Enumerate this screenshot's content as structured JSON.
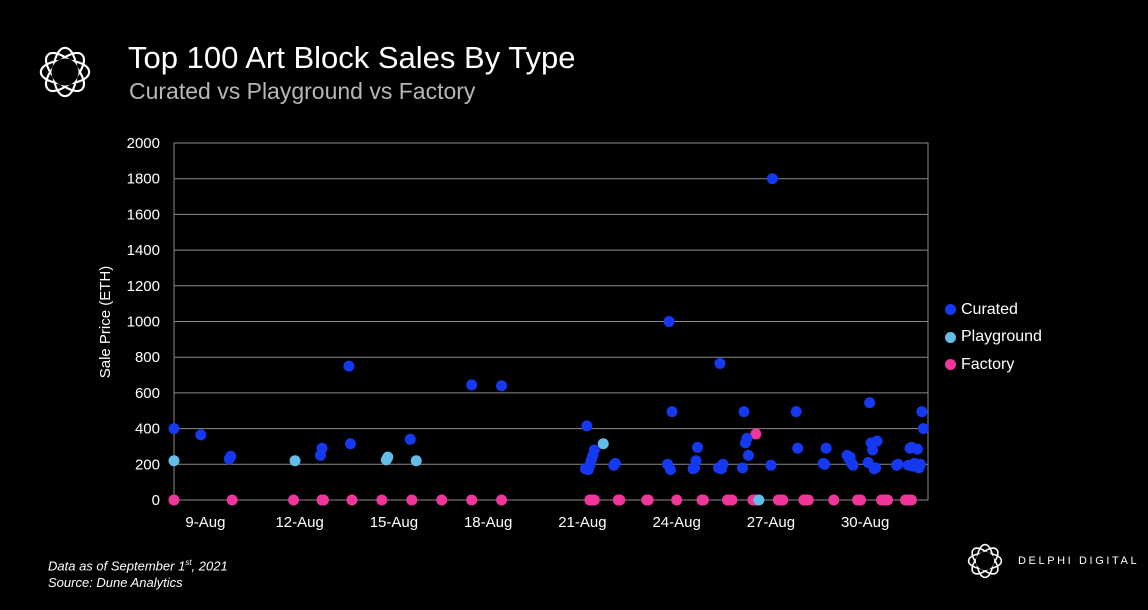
{
  "header": {
    "title": "Top 100 Art Block Sales By Type",
    "subtitle": "Curated vs Playground vs Factory"
  },
  "footnote": {
    "line1_prefix": "Data as of September 1",
    "line1_sup": "st",
    "line1_suffix": ", 2021",
    "line2": "Source:  Dune Analytics"
  },
  "brand": {
    "name": "DELPHI DIGITAL"
  },
  "colors": {
    "Curated": "#1439f0",
    "Playground": "#63bde9",
    "Factory": "#f0359b",
    "plot_bg": "#000000",
    "grid": "#8a8a8a"
  },
  "chart_data": {
    "type": "scatter",
    "title": "Top 100 Art Block Sales By Type",
    "subtitle": "Curated vs Playground vs Factory",
    "xlabel": "",
    "ylabel": "Sale Price (ETH)",
    "xlim": [
      "2021-08-08",
      "2021-09-01"
    ],
    "ylim": [
      0,
      2000
    ],
    "x_tick_labels": [
      "9-Aug",
      "12-Aug",
      "15-Aug",
      "18-Aug",
      "21-Aug",
      "24-Aug",
      "27-Aug",
      "30-Aug"
    ],
    "x_tick_dates": [
      "2021-08-09",
      "2021-08-12",
      "2021-08-15",
      "2021-08-18",
      "2021-08-21",
      "2021-08-24",
      "2021-08-27",
      "2021-08-30"
    ],
    "y_ticks": [
      0,
      200,
      400,
      600,
      800,
      1000,
      1200,
      1400,
      1600,
      1800,
      2000
    ],
    "grid": true,
    "legend_position": "right",
    "series": [
      {
        "name": "Curated",
        "x": [
          "2021-08-08",
          "2021-08-08",
          "2021-08-09",
          "2021-08-09",
          "2021-08-12",
          "2021-08-12",
          "2021-08-13",
          "2021-08-13",
          "2021-08-15",
          "2021-08-17",
          "2021-08-18",
          "2021-08-21",
          "2021-08-21",
          "2021-08-21",
          "2021-08-21",
          "2021-08-21",
          "2021-08-21",
          "2021-08-21",
          "2021-08-22",
          "2021-08-22",
          "2021-08-23",
          "2021-08-23",
          "2021-08-23",
          "2021-08-23",
          "2021-08-24",
          "2021-08-24",
          "2021-08-24",
          "2021-08-24",
          "2021-08-25",
          "2021-08-25",
          "2021-08-25",
          "2021-08-25",
          "2021-08-26",
          "2021-08-26",
          "2021-08-26",
          "2021-08-26",
          "2021-08-26",
          "2021-08-27",
          "2021-08-27",
          "2021-08-27",
          "2021-08-27",
          "2021-08-28",
          "2021-08-28",
          "2021-08-28",
          "2021-08-29",
          "2021-08-29",
          "2021-08-29",
          "2021-08-29",
          "2021-08-29",
          "2021-08-30",
          "2021-08-30",
          "2021-08-30",
          "2021-08-30",
          "2021-08-30",
          "2021-08-30",
          "2021-08-30",
          "2021-08-31",
          "2021-08-31",
          "2021-08-31",
          "2021-08-31",
          "2021-08-31",
          "2021-08-31",
          "2021-08-31",
          "2021-08-31",
          "2021-08-31",
          "2021-08-31",
          "2021-08-31",
          "2021-08-31",
          "2021-08-31"
        ],
        "y": [
          400,
          365,
          245,
          230,
          290,
          250,
          315,
          750,
          340,
          645,
          640,
          280,
          250,
          225,
          195,
          170,
          415,
          175,
          205,
          195,
          495,
          170,
          1000,
          200,
          295,
          220,
          180,
          175,
          200,
          175,
          765,
          180,
          250,
          345,
          320,
          495,
          180,
          1800,
          195,
          290,
          495,
          290,
          200,
          205,
          195,
          205,
          240,
          235,
          250,
          330,
          180,
          175,
          280,
          320,
          545,
          210,
          200,
          195,
          400,
          495,
          200,
          180,
          285,
          200,
          205,
          190,
          295,
          290,
          195
        ]
      },
      {
        "name": "Playground",
        "x": [
          "2021-08-08",
          "2021-08-11",
          "2021-08-14",
          "2021-08-14",
          "2021-08-15",
          "2021-08-21",
          "2021-08-26"
        ],
        "y": [
          220,
          220,
          240,
          225,
          220,
          315,
          0
        ]
      },
      {
        "name": "Factory",
        "x": [
          "2021-08-08",
          "2021-08-09",
          "2021-08-11",
          "2021-08-12",
          "2021-08-12",
          "2021-08-13",
          "2021-08-14",
          "2021-08-15",
          "2021-08-16",
          "2021-08-17",
          "2021-08-18",
          "2021-08-21",
          "2021-08-21",
          "2021-08-21",
          "2021-08-21",
          "2021-08-22",
          "2021-08-22",
          "2021-08-23",
          "2021-08-23",
          "2021-08-24",
          "2021-08-24",
          "2021-08-24",
          "2021-08-25",
          "2021-08-25",
          "2021-08-25",
          "2021-08-25",
          "2021-08-26",
          "2021-08-26",
          "2021-08-26",
          "2021-08-26",
          "2021-08-27",
          "2021-08-27",
          "2021-08-27",
          "2021-08-27",
          "2021-08-28",
          "2021-08-28",
          "2021-08-28",
          "2021-08-28",
          "2021-08-29",
          "2021-08-29",
          "2021-08-29",
          "2021-08-29",
          "2021-08-30",
          "2021-08-30",
          "2021-08-30",
          "2021-08-30",
          "2021-08-30",
          "2021-08-31",
          "2021-08-31",
          "2021-08-31",
          "2021-08-31",
          "2021-08-31"
        ],
        "y": [
          0,
          0,
          0,
          0,
          0,
          0,
          0,
          0,
          0,
          0,
          0,
          0,
          0,
          0,
          0,
          0,
          0,
          0,
          0,
          0,
          0,
          0,
          0,
          0,
          0,
          0,
          0,
          370,
          0,
          0,
          0,
          0,
          0,
          0,
          0,
          0,
          0,
          0,
          0,
          0,
          0,
          0,
          0,
          0,
          0,
          0,
          0,
          0,
          0,
          0,
          0,
          0
        ]
      }
    ]
  }
}
